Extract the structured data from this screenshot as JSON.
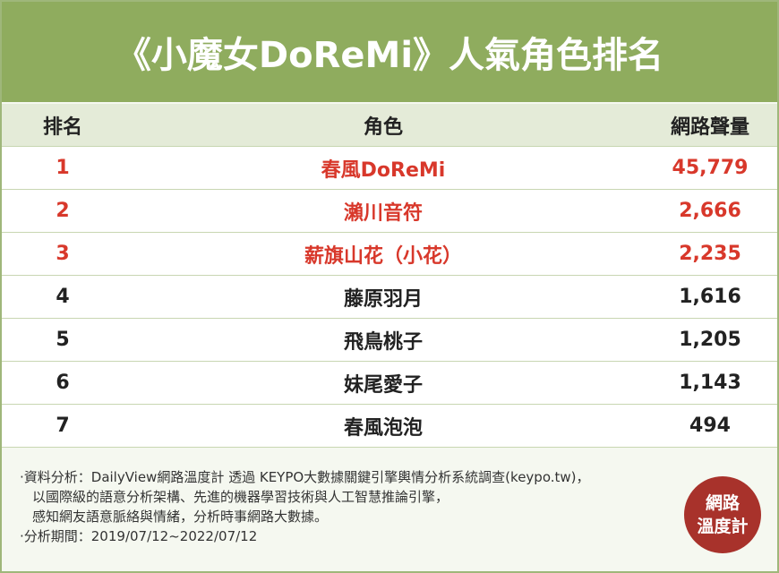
{
  "header": {
    "title": "《小魔女DoReMi》人氣角色排名"
  },
  "table": {
    "columns": [
      "排名",
      "角色",
      "網路聲量"
    ],
    "rows": [
      [
        "1",
        "春風DoReMi",
        "45,779"
      ],
      [
        "2",
        "瀨川音符",
        "2,666"
      ],
      [
        "3",
        "薪旗山花（小花）",
        "2,235"
      ],
      [
        "4",
        "藤原羽月",
        "1,616"
      ],
      [
        "5",
        "飛鳥桃子",
        "1,205"
      ],
      [
        "6",
        "妹尾愛子",
        "1,143"
      ],
      [
        "7",
        "春風泡泡",
        "494"
      ]
    ]
  },
  "notes": [
    "‧資料分析：DailyView網路溫度計 透過 KEYPO大數據關鍵引擎輿情分析系統調查(keypo.tw)，",
    "以國際級的語意分析架構、先進的機器學習技術與人工智慧推論引擎，",
    "感知網友語意脈絡與情緒，分析時事網路大數據。",
    "‧分析期間：2019/07/12~2022/07/12"
  ],
  "logo": [
    "網路",
    "溫度計"
  ]
}
